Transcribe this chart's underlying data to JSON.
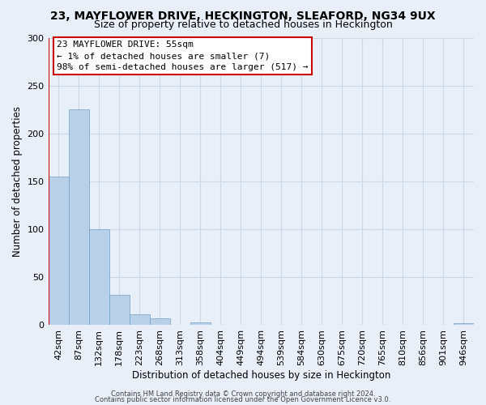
{
  "title": "23, MAYFLOWER DRIVE, HECKINGTON, SLEAFORD, NG34 9UX",
  "subtitle": "Size of property relative to detached houses in Heckington",
  "xlabel": "Distribution of detached houses by size in Heckington",
  "ylabel": "Number of detached properties",
  "bar_labels": [
    "42sqm",
    "87sqm",
    "132sqm",
    "178sqm",
    "223sqm",
    "268sqm",
    "313sqm",
    "358sqm",
    "404sqm",
    "449sqm",
    "494sqm",
    "539sqm",
    "584sqm",
    "630sqm",
    "675sqm",
    "720sqm",
    "765sqm",
    "810sqm",
    "856sqm",
    "901sqm",
    "946sqm"
  ],
  "bar_values": [
    155,
    225,
    100,
    32,
    11,
    7,
    0,
    3,
    0,
    0,
    0,
    0,
    0,
    0,
    0,
    0,
    0,
    0,
    0,
    0,
    2
  ],
  "bar_color": "#b8d0e8",
  "bar_edge_color": "#6fa0c8",
  "highlight_color": "#cc0000",
  "red_line_x": -0.5,
  "ylim": [
    0,
    300
  ],
  "yticks": [
    0,
    50,
    100,
    150,
    200,
    250,
    300
  ],
  "annotation_title": "23 MAYFLOWER DRIVE: 55sqm",
  "annotation_line1": "← 1% of detached houses are smaller (7)",
  "annotation_line2": "98% of semi-detached houses are larger (517) →",
  "annotation_box_color": "#ffffff",
  "annotation_box_edge": "#cc0000",
  "footer_line1": "Contains HM Land Registry data © Crown copyright and database right 2024.",
  "footer_line2": "Contains public sector information licensed under the Open Government Licence v3.0.",
  "grid_color": "#c8d8e8",
  "background_color": "#e8eff8",
  "title_fontsize": 10,
  "subtitle_fontsize": 9,
  "annotation_fontsize": 8,
  "axis_label_fontsize": 8.5,
  "tick_fontsize": 8,
  "footer_fontsize": 6
}
